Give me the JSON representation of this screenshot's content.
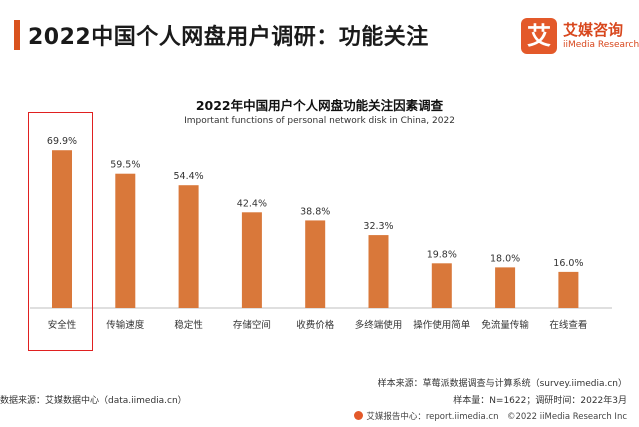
{
  "header": {
    "title": "2022中国个人网盘用户调研：功能关注"
  },
  "logo": {
    "mark": "艾",
    "name_cn": "艾媒咨询",
    "name_en": "iiMedia Research"
  },
  "chart_data": {
    "type": "bar",
    "title": "2022年中国用户个人网盘功能关注因素调查",
    "subtitle": "Important functions of personal network disk in China, 2022",
    "categories": [
      "安全性",
      "传输速度",
      "稳定性",
      "存储空间",
      "收费价格",
      "多终端使用",
      "操作使用简单",
      "免流量传输",
      "在线查看"
    ],
    "values": [
      69.9,
      59.5,
      54.4,
      42.4,
      38.8,
      32.3,
      19.8,
      18.0,
      16.0
    ],
    "value_labels": [
      "69.9%",
      "59.5%",
      "54.4%",
      "42.4%",
      "38.8%",
      "32.3%",
      "19.8%",
      "18.0%",
      "16.0%"
    ],
    "unit": "%",
    "ylim": [
      0,
      70
    ],
    "grid": false,
    "highlighted_category": "安全性",
    "colors": {
      "bar": "#d9783a",
      "highlight_border": "#e02020",
      "accent": "#d9531e"
    }
  },
  "footer": {
    "data_source": "数据来源：艾媒数据中心（data.iimedia.cn）",
    "sample_source": "样本来源：草莓派数据调查与计算系统（survey.iimedia.cn）",
    "sample_size": "样本量：N=1622；调研时间：2022年3月",
    "report": "艾媒报告中心：report.iimedia.cn　©2022 iiMedia Research Inc"
  }
}
